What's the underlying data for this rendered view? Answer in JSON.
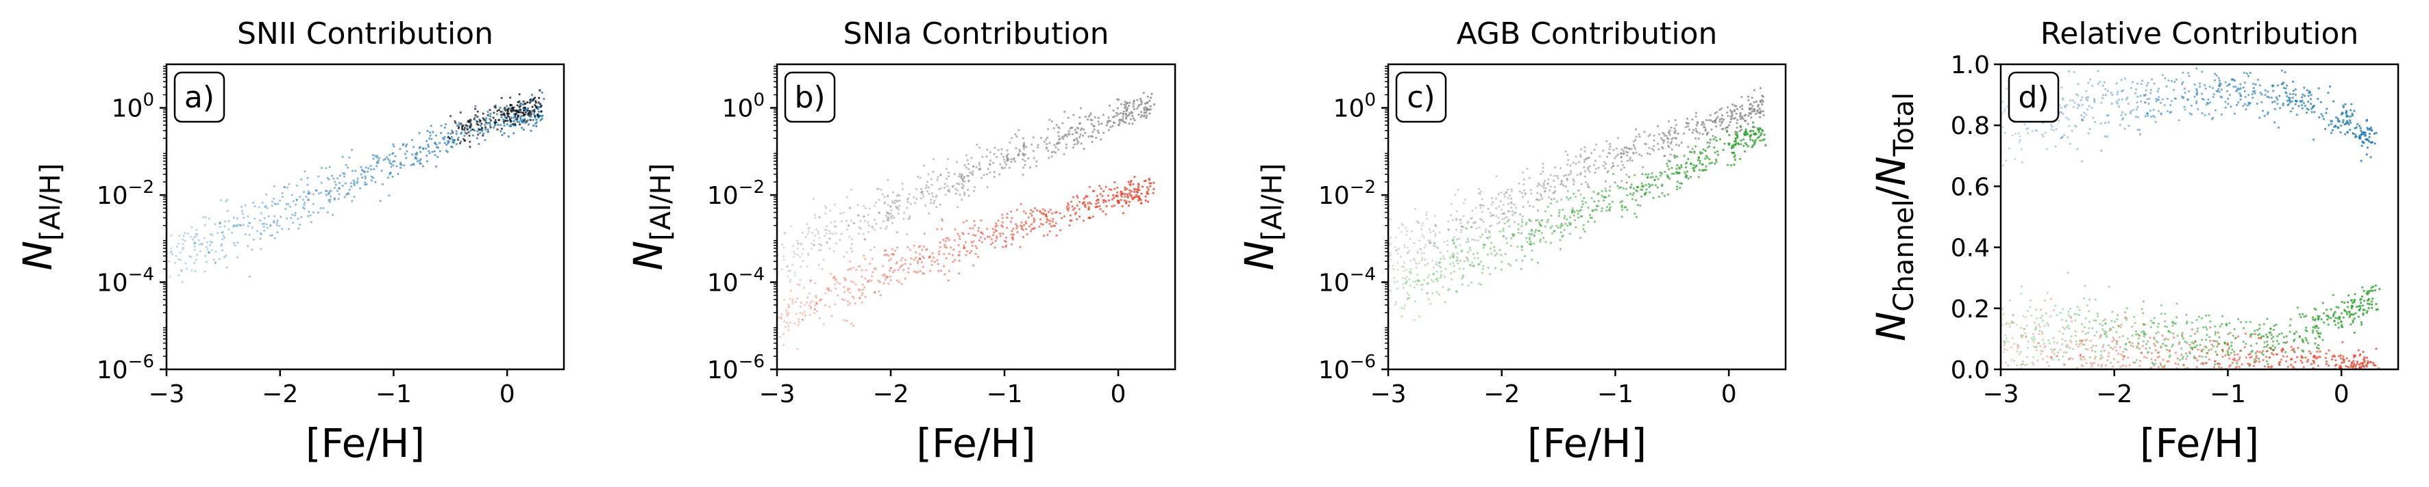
{
  "chart_data": [
    {
      "type": "scatter",
      "panel_label": "a)",
      "title": "SNII Contribution",
      "xlabel": "[Fe/H]",
      "ylabel": "N[Al/H]",
      "yscale": "log",
      "xlim": [
        -3,
        0.5
      ],
      "ylim": [
        1e-06,
        10
      ],
      "xticks": [
        -3,
        -2,
        -1,
        0
      ],
      "xtick_labels": [
        "−3",
        "−2",
        "−1",
        "0"
      ],
      "yticks": [
        1e-06,
        0.0001,
        0.01,
        1
      ],
      "ytick_labels": [
        [
          "10",
          "−6"
        ],
        [
          "10",
          "−4"
        ],
        [
          "10",
          "−2"
        ],
        [
          "10",
          "0"
        ]
      ],
      "series": [
        {
          "color": "#1f77b4",
          "x": [
            -3.0,
            -2.5,
            -2.0,
            -1.5,
            -1.0,
            -0.5,
            0.0,
            0.3
          ],
          "y": [
            0.0003,
            0.0012,
            0.004,
            0.015,
            0.06,
            0.2,
            0.55,
            0.8
          ]
        },
        {
          "color": "#111111",
          "x": [
            -0.5,
            0.0,
            0.3
          ],
          "y": [
            0.25,
            0.75,
            1.1
          ]
        }
      ]
    },
    {
      "type": "scatter",
      "panel_label": "b)",
      "title": "SNIa Contribution",
      "xlabel": "[Fe/H]",
      "ylabel": "N[Al/H]",
      "yscale": "log",
      "xlim": [
        -3,
        0.5
      ],
      "ylim": [
        1e-06,
        10
      ],
      "xticks": [
        -3,
        -2,
        -1,
        0
      ],
      "xtick_labels": [
        "−3",
        "−2",
        "−1",
        "0"
      ],
      "yticks": [
        1e-06,
        0.0001,
        0.01,
        1
      ],
      "ytick_labels": [
        [
          "10",
          "−6"
        ],
        [
          "10",
          "−4"
        ],
        [
          "10",
          "−2"
        ],
        [
          "10",
          "0"
        ]
      ],
      "series": [
        {
          "color": "#888888",
          "x": [
            -3.0,
            -2.5,
            -2.0,
            -1.5,
            -1.0,
            -0.5,
            0.0,
            0.3
          ],
          "y": [
            0.0004,
            0.0013,
            0.005,
            0.02,
            0.07,
            0.22,
            0.6,
            1.1
          ]
        },
        {
          "color": "#e8452c",
          "x": [
            -3.0,
            -2.5,
            -2.0,
            -1.5,
            -1.0,
            -0.5,
            0.0,
            0.3
          ],
          "y": [
            1.5e-05,
            5e-05,
            0.0002,
            0.0006,
            0.0015,
            0.004,
            0.009,
            0.014
          ]
        }
      ]
    },
    {
      "type": "scatter",
      "panel_label": "c)",
      "title": "AGB Contribution",
      "xlabel": "[Fe/H]",
      "ylabel": "N[Al/H]",
      "yscale": "log",
      "xlim": [
        -3,
        0.5
      ],
      "ylim": [
        1e-06,
        10
      ],
      "xticks": [
        -3,
        -2,
        -1,
        0
      ],
      "xtick_labels": [
        "−3",
        "−2",
        "−1",
        "0"
      ],
      "yticks": [
        1e-06,
        0.0001,
        0.01,
        1
      ],
      "ytick_labels": [
        [
          "10",
          "−6"
        ],
        [
          "10",
          "−4"
        ],
        [
          "10",
          "−2"
        ],
        [
          "10",
          "0"
        ]
      ],
      "series": [
        {
          "color": "#888888",
          "x": [
            -3.0,
            -2.5,
            -2.0,
            -1.5,
            -1.0,
            -0.5,
            0.0,
            0.3
          ],
          "y": [
            0.0004,
            0.0013,
            0.005,
            0.02,
            0.07,
            0.22,
            0.6,
            1.1
          ]
        },
        {
          "color": "#2ca02c",
          "x": [
            -3.0,
            -2.5,
            -2.0,
            -1.5,
            -1.0,
            -0.5,
            0.0,
            0.3
          ],
          "y": [
            6e-05,
            0.0002,
            0.0007,
            0.0025,
            0.007,
            0.03,
            0.12,
            0.3
          ]
        }
      ]
    },
    {
      "type": "scatter",
      "panel_label": "d)",
      "title": "Relative Contribution",
      "xlabel": "[Fe/H]",
      "ylabel": "NChannel/NTotal",
      "yscale": "linear",
      "xlim": [
        -3,
        0.5
      ],
      "ylim": [
        0,
        1
      ],
      "xticks": [
        -3,
        -2,
        -1,
        0
      ],
      "xtick_labels": [
        "−3",
        "−2",
        "−1",
        "0"
      ],
      "yticks": [
        0,
        0.2,
        0.4,
        0.6,
        0.8,
        1.0
      ],
      "ytick_labels": [
        "0.0",
        "0.2",
        "0.4",
        "0.6",
        "0.8",
        "1.0"
      ],
      "series": [
        {
          "color": "#1f77b4",
          "x": [
            -3.0,
            -2.5,
            -2.0,
            -1.5,
            -1.0,
            -0.5,
            0.0,
            0.3
          ],
          "y": [
            0.8,
            0.85,
            0.87,
            0.9,
            0.91,
            0.9,
            0.82,
            0.75
          ]
        },
        {
          "color": "#2ca02c",
          "x": [
            -3.0,
            -2.5,
            -2.0,
            -1.5,
            -1.0,
            -0.5,
            0.0,
            0.3
          ],
          "y": [
            0.12,
            0.12,
            0.12,
            0.1,
            0.09,
            0.1,
            0.17,
            0.24
          ]
        },
        {
          "color": "#e8452c",
          "x": [
            -3.0,
            -2.5,
            -2.0,
            -1.5,
            -1.0,
            -0.5,
            0.0,
            0.3
          ],
          "y": [
            0.04,
            0.04,
            0.035,
            0.03,
            0.025,
            0.02,
            0.015,
            0.012
          ]
        }
      ]
    }
  ]
}
